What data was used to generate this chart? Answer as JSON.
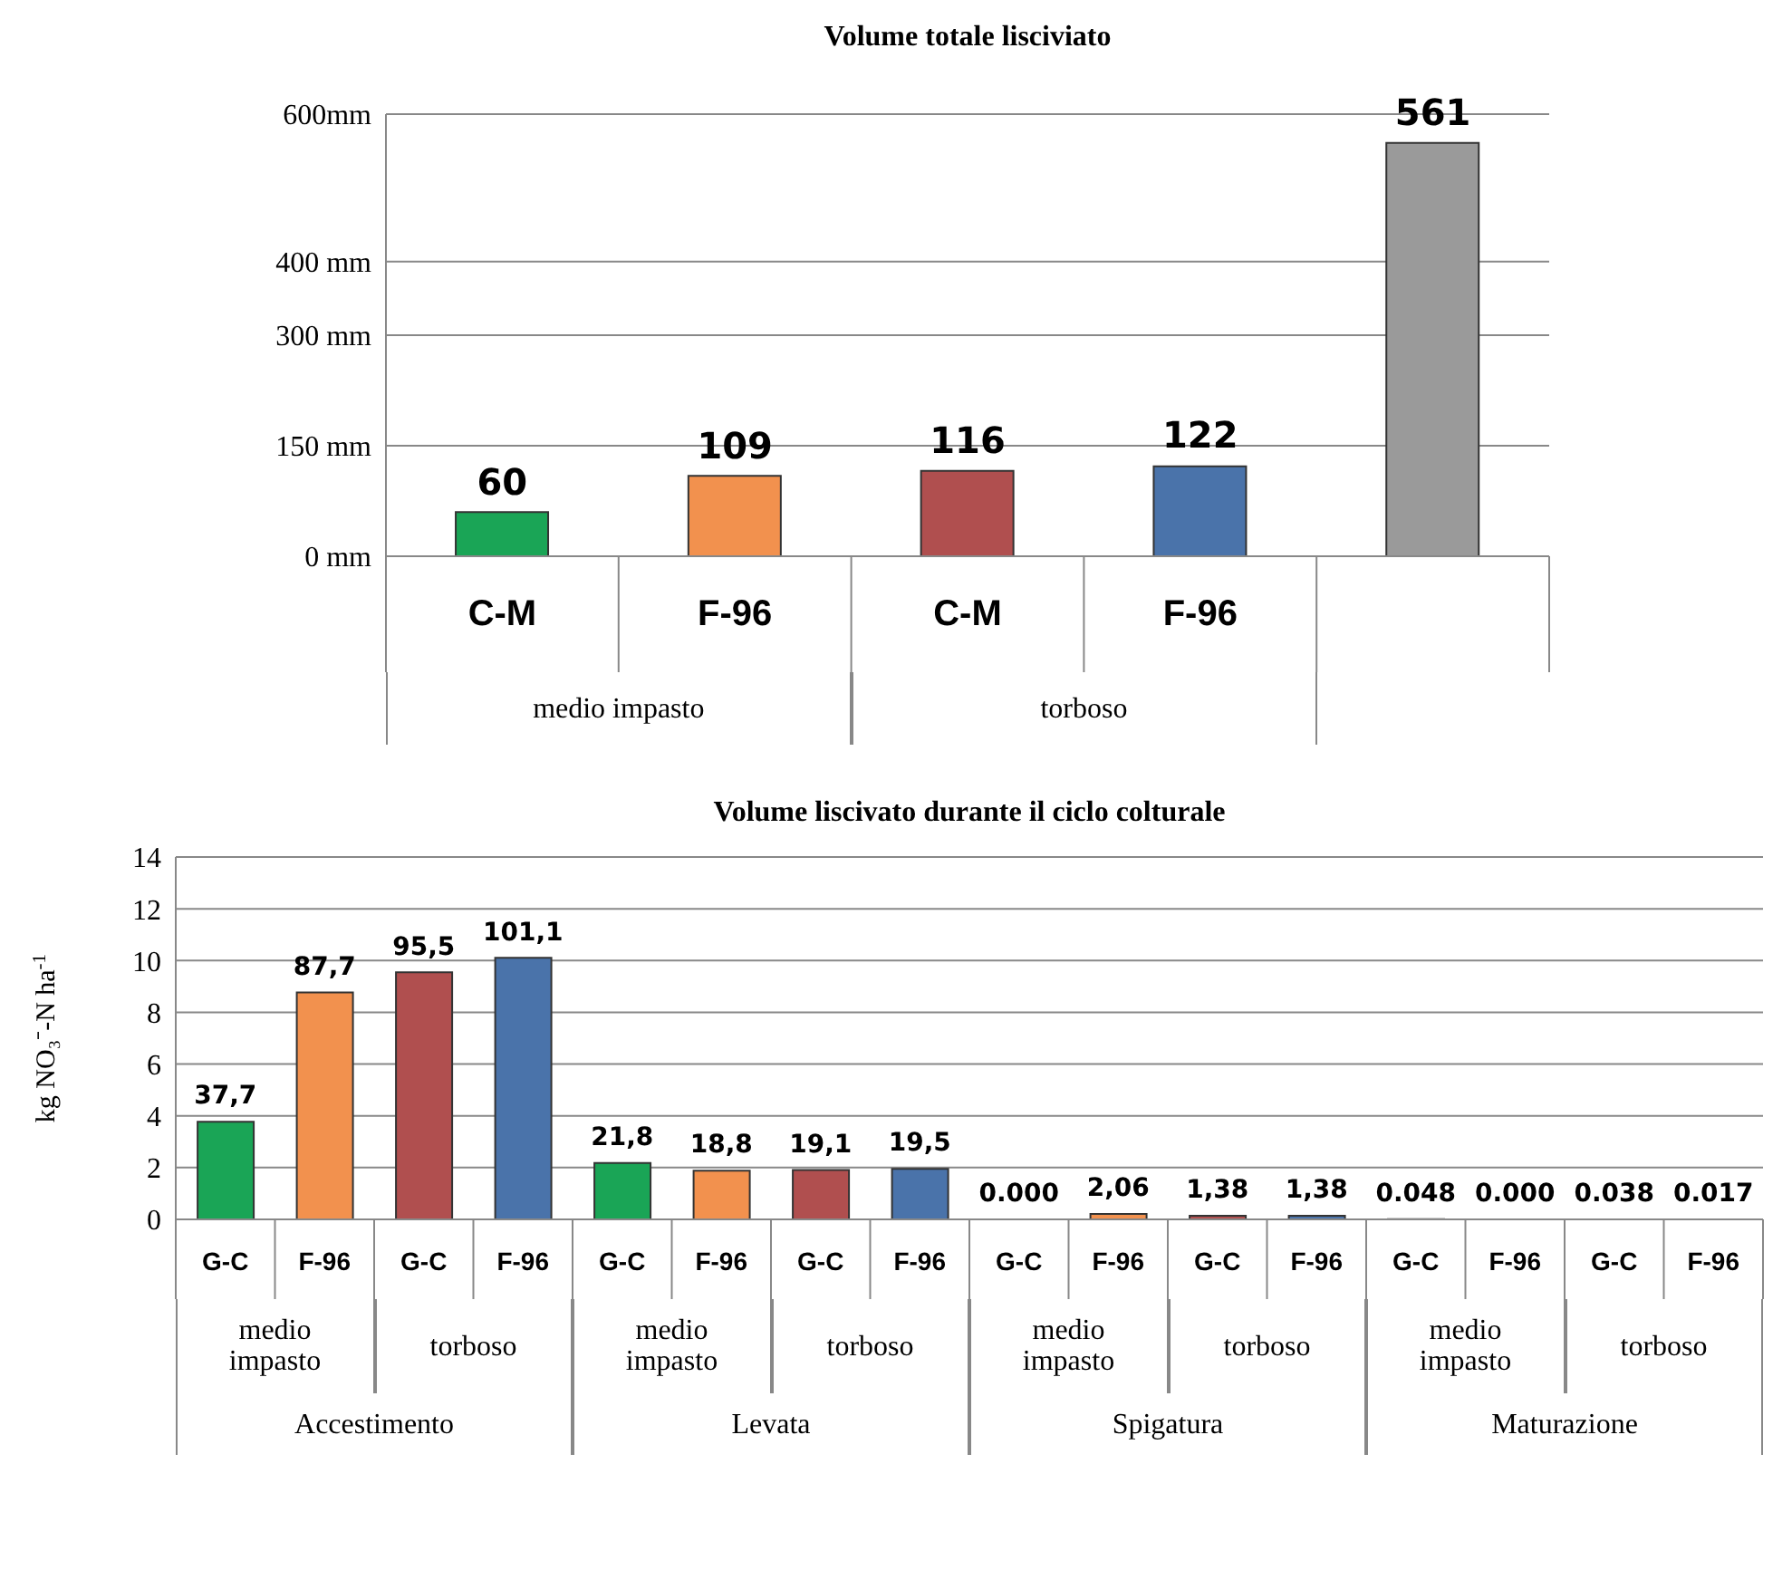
{
  "chart_data": [
    {
      "type": "bar",
      "title": "Volume totale lisciviato",
      "categories": [
        "C-M",
        "F-96",
        "C-M",
        "F-96",
        null
      ],
      "values": [
        60,
        109,
        116,
        122,
        561
      ],
      "colors": [
        "#1aa556",
        "#f2914e",
        "#b04f4f",
        "#4a73aa",
        "#9a9a9a"
      ],
      "ylim": [
        0,
        600
      ],
      "yticks": [
        {
          "value": 0,
          "label": "0 mm"
        },
        {
          "value": 150,
          "label": "150 mm"
        },
        {
          "value": 300,
          "label": "300 mm"
        },
        {
          "value": 400,
          "label": "400 mm"
        },
        {
          "value": 600,
          "label": "600mm"
        }
      ],
      "grid": "y",
      "data_labels": true,
      "annotations": [
        "medio impasto",
        "torboso"
      ]
    },
    {
      "type": "bar",
      "title": "Volume liscivato durante il ciclo colturale",
      "ylabel": "kg NO₃⁻-N ha$^{-1}$",
      "categories": [
        "G-C",
        "F-96",
        "G-C",
        "F-96",
        "G-C",
        "F-96",
        "G-C",
        "F-96",
        "G-C",
        "F-96",
        "G-C",
        "F-96",
        "G-C",
        "F-96",
        "G-C",
        "F-96"
      ],
      "series": [
        {
          "axis": "y2",
          "values": [
            37.7,
            87.7,
            95.5,
            101.1,
            21.8,
            18.8,
            19.1,
            19.5,
            0,
            2.06,
            1.38,
            1.38,
            0.048,
            0,
            0.038,
            0.017
          ],
          "value_labels": [
            "37,7",
            "87,7",
            "95,5",
            "101,1",
            "21,8",
            "18,8",
            "19,1",
            "19,5",
            "0.000",
            "2,06",
            "1,38",
            "1,38",
            "0.048",
            "0.000",
            "0.038",
            "0.017"
          ]
        }
      ],
      "colors": [
        "#1aa556",
        "#f2914e",
        "#b04f4f",
        "#4a73aa",
        "#1aa556",
        "#f2914e",
        "#b04f4f",
        "#4a73aa",
        "#1aa556",
        "#f2914e",
        "#b04f4f",
        "#4a73aa",
        "#1aa556",
        "#f2914e",
        "#b04f4f",
        "#4a73aa"
      ],
      "ylim": [
        0,
        14
      ],
      "yticks": [
        0,
        2,
        4,
        6,
        8,
        10,
        12,
        14
      ],
      "y2lim": [
        0,
        140
      ],
      "grid": "y",
      "annotations": [
        "medio impasto",
        "torboso",
        "medio impasto",
        "torboso",
        "medio impasto",
        "torboso",
        "medio impasto",
        "torboso",
        "Accestimento",
        "Levata",
        "Spigatura",
        "Maturazione"
      ]
    }
  ]
}
